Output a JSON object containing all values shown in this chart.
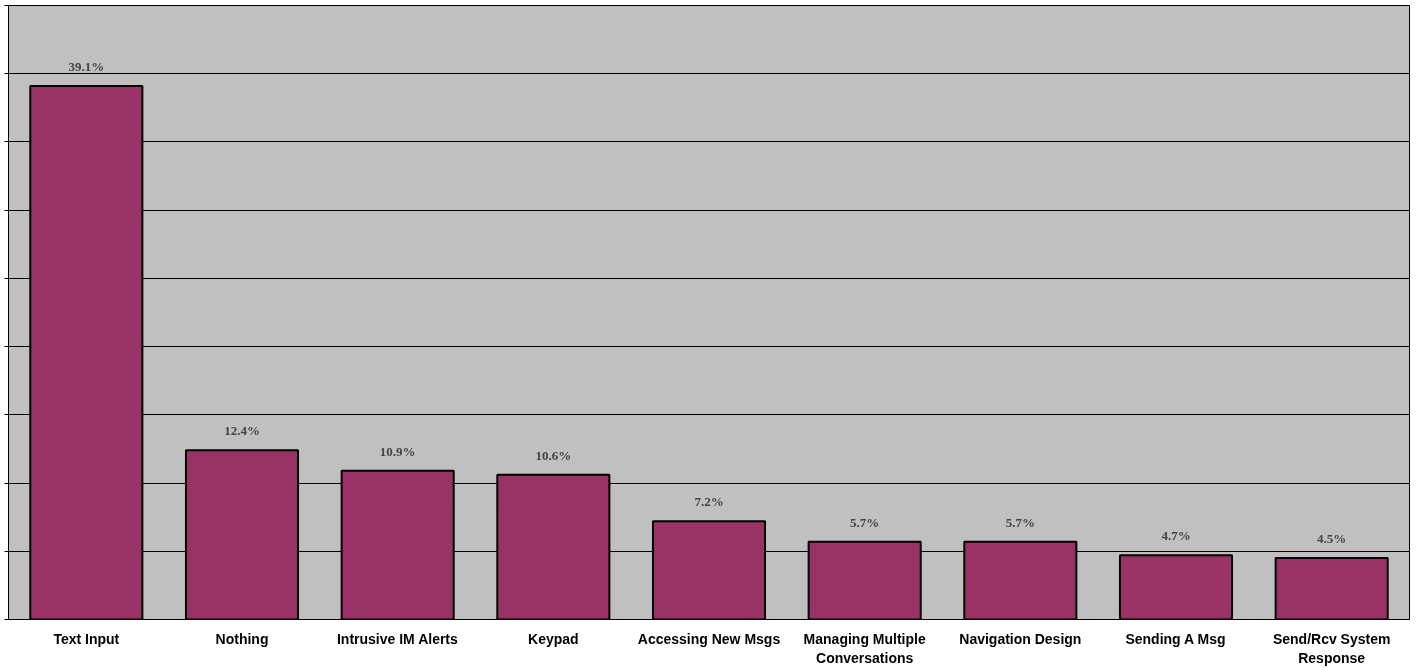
{
  "chart_data": {
    "type": "bar",
    "categories": [
      "Text Input",
      "Nothing",
      "Intrusive IM Alerts",
      "Keypad",
      "Accessing New Msgs",
      "Managing Multiple Conversations",
      "Navigation Design",
      "Sending A Msg",
      "Send/Rcv System Response"
    ],
    "values": [
      39.1,
      12.4,
      10.9,
      10.6,
      7.2,
      5.7,
      5.7,
      4.7,
      4.5
    ],
    "value_labels": [
      "39.1%",
      "12.4%",
      "10.9%",
      "10.6%",
      "7.2%",
      "5.7%",
      "5.7%",
      "4.7%",
      "4.5%"
    ],
    "color": "#993366",
    "ylim": [
      0,
      45
    ],
    "yticks": [
      {
        "value": 0,
        "label": null
      },
      {
        "value": 5,
        "label": null
      },
      {
        "value": 10,
        "label": null
      },
      {
        "value": 15,
        "label": null
      },
      {
        "value": 20,
        "label": null
      },
      {
        "value": 25,
        "label": null
      },
      {
        "value": 30,
        "label": null
      },
      {
        "value": 35,
        "label": null
      },
      {
        "value": 40,
        "label": null
      },
      {
        "value": 45,
        "label": null
      }
    ],
    "grid": "y",
    "tick_labels": "x"
  }
}
